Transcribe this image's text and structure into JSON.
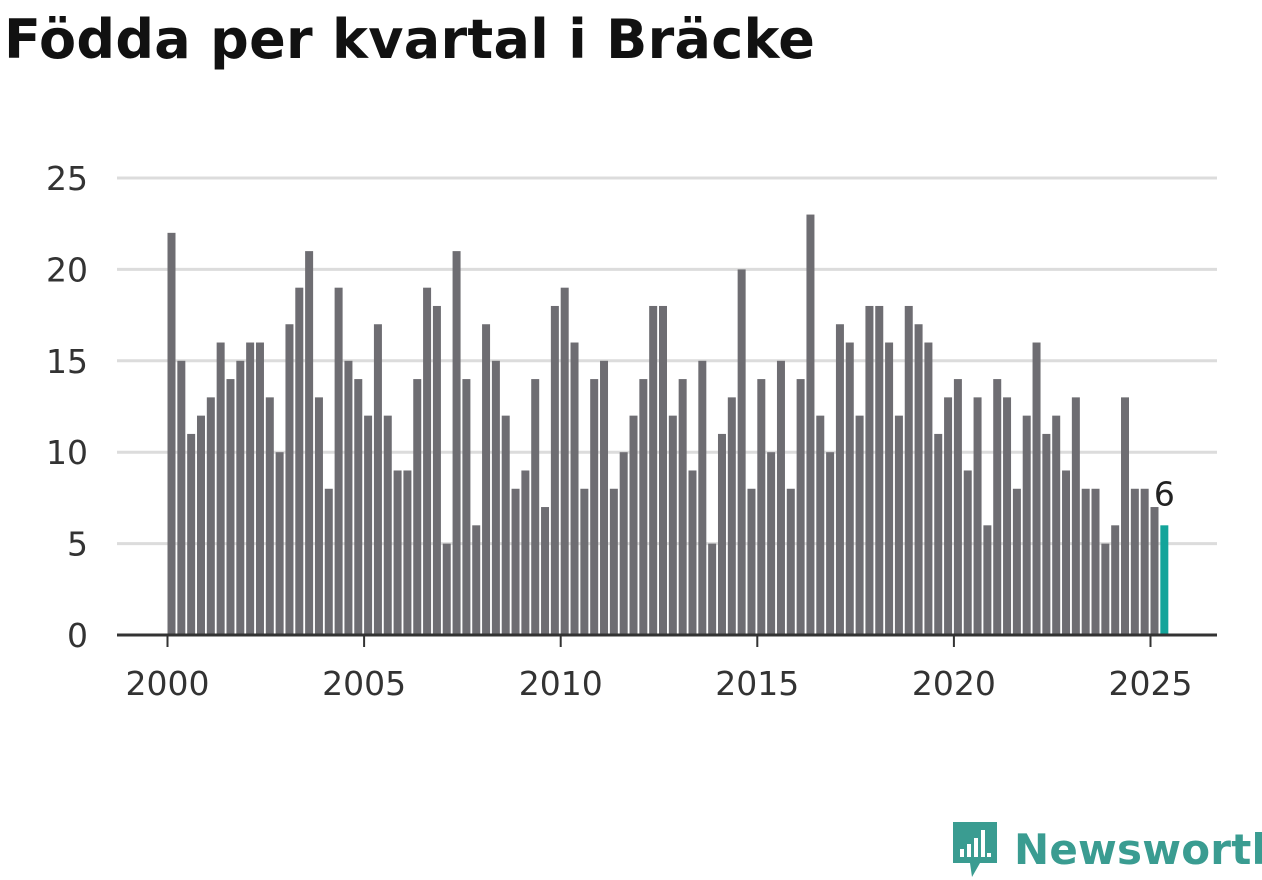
{
  "title": "Födda per kvartal i Bräcke",
  "brand": {
    "name": "Newsworthy",
    "icon": "newsworthy-logo-icon"
  },
  "colors": {
    "bar": "#6e6d72",
    "highlight": "#13a49a",
    "grid": "#dcdcdc",
    "axis": "#333333",
    "brand": "#3a9c91"
  },
  "chart_data": {
    "type": "bar",
    "title": "Födda per kvartal i Bräcke",
    "xlabel": "",
    "ylabel": "",
    "ylim": [
      0,
      25
    ],
    "yticks": [
      0,
      5,
      10,
      15,
      20,
      25
    ],
    "xticks": [
      "2000",
      "2005",
      "2010",
      "2015",
      "2020",
      "2025"
    ],
    "grid": true,
    "start": "2000 Q1",
    "values": [
      22,
      15,
      11,
      12,
      13,
      16,
      14,
      15,
      16,
      16,
      13,
      10,
      17,
      19,
      21,
      13,
      8,
      19,
      15,
      14,
      12,
      17,
      12,
      9,
      9,
      14,
      19,
      18,
      5,
      21,
      14,
      6,
      17,
      15,
      12,
      8,
      9,
      14,
      7,
      18,
      19,
      16,
      8,
      14,
      15,
      8,
      10,
      12,
      14,
      18,
      18,
      12,
      14,
      9,
      15,
      5,
      11,
      13,
      20,
      8,
      14,
      10,
      15,
      8,
      14,
      23,
      12,
      10,
      17,
      16,
      12,
      18,
      18,
      16,
      12,
      18,
      17,
      16,
      11,
      13,
      14,
      9,
      13,
      6,
      14,
      13,
      8,
      12,
      16,
      11,
      12,
      9,
      13,
      8,
      8,
      5,
      6,
      13,
      8,
      8,
      7,
      6
    ],
    "highlight_index": 101,
    "highlight_label": "6"
  }
}
